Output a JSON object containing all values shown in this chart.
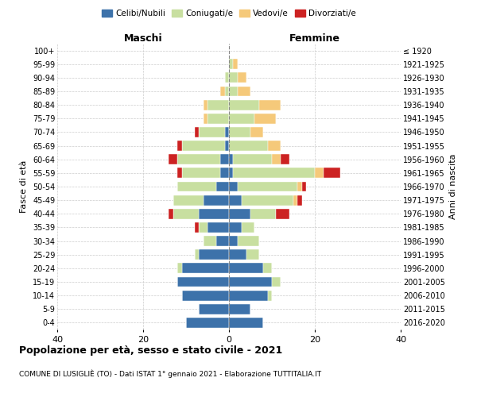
{
  "age_groups": [
    "100+",
    "95-99",
    "90-94",
    "85-89",
    "80-84",
    "75-79",
    "70-74",
    "65-69",
    "60-64",
    "55-59",
    "50-54",
    "45-49",
    "40-44",
    "35-39",
    "30-34",
    "25-29",
    "20-24",
    "15-19",
    "10-14",
    "5-9",
    "0-4"
  ],
  "birth_years": [
    "≤ 1920",
    "1921-1925",
    "1926-1930",
    "1931-1935",
    "1936-1940",
    "1941-1945",
    "1946-1950",
    "1951-1955",
    "1956-1960",
    "1961-1965",
    "1966-1970",
    "1971-1975",
    "1976-1980",
    "1981-1985",
    "1986-1990",
    "1991-1995",
    "1996-2000",
    "2001-2005",
    "2006-2010",
    "2011-2015",
    "2016-2020"
  ],
  "male": {
    "celibi": [
      0,
      0,
      0,
      0,
      0,
      0,
      1,
      1,
      2,
      2,
      3,
      6,
      7,
      5,
      3,
      7,
      11,
      12,
      11,
      7,
      10
    ],
    "coniugati": [
      0,
      0,
      1,
      1,
      5,
      5,
      6,
      10,
      10,
      9,
      9,
      7,
      6,
      2,
      3,
      1,
      1,
      0,
      0,
      0,
      0
    ],
    "vedovi": [
      0,
      0,
      0,
      1,
      1,
      1,
      0,
      0,
      0,
      0,
      0,
      0,
      0,
      0,
      0,
      0,
      0,
      0,
      0,
      0,
      0
    ],
    "divorziati": [
      0,
      0,
      0,
      0,
      0,
      0,
      1,
      1,
      2,
      1,
      0,
      0,
      1,
      1,
      0,
      0,
      0,
      0,
      0,
      0,
      0
    ]
  },
  "female": {
    "nubili": [
      0,
      0,
      0,
      0,
      0,
      0,
      0,
      0,
      1,
      1,
      2,
      3,
      5,
      3,
      2,
      4,
      8,
      10,
      9,
      5,
      8
    ],
    "coniugate": [
      0,
      1,
      2,
      2,
      7,
      6,
      5,
      9,
      9,
      19,
      14,
      12,
      6,
      3,
      5,
      3,
      2,
      2,
      1,
      0,
      0
    ],
    "vedove": [
      0,
      1,
      2,
      3,
      5,
      5,
      3,
      3,
      2,
      2,
      1,
      1,
      0,
      0,
      0,
      0,
      0,
      0,
      0,
      0,
      0
    ],
    "divorziate": [
      0,
      0,
      0,
      0,
      0,
      0,
      0,
      0,
      2,
      4,
      1,
      1,
      3,
      0,
      0,
      0,
      0,
      0,
      0,
      0,
      0
    ]
  },
  "color_celibi": "#3d72aa",
  "color_coniugati": "#c8dfa0",
  "color_vedovi": "#f5c97a",
  "color_divorziati": "#cc2222",
  "xlim": 40,
  "title": "Popolazione per età, sesso e stato civile - 2021",
  "subtitle": "COMUNE DI LUSIGЛИÈ (TO) - Dati ISTAT 1° gennaio 2021 - Elaborazione TUTTITALIA.IT",
  "ylabel": "Fasce di età",
  "ylabel_right": "Anni di nascita",
  "legend_labels": [
    "Celibi/Nubili",
    "Coniugati/e",
    "Vedovi/e",
    "Divorziati/e"
  ]
}
